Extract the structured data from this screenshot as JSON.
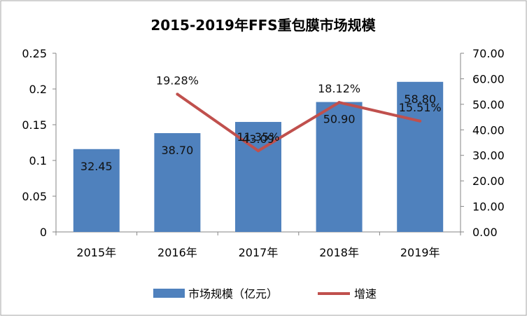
{
  "chart_data": {
    "type": "bar",
    "title": "2015-2019年FFS重包膜市场规模",
    "categories": [
      "2015年",
      "2016年",
      "2017年",
      "2018年",
      "2019年"
    ],
    "series": [
      {
        "name": "市场规模（亿元）",
        "kind": "bar",
        "axis": "right",
        "values": [
          32.45,
          38.7,
          43.09,
          50.9,
          58.8
        ],
        "labels": [
          "32.45",
          "38.70",
          "43.09",
          "50.90",
          "58.80"
        ],
        "color": "#4F81BD"
      },
      {
        "name": "增速",
        "kind": "line",
        "axis": "left",
        "values": [
          null,
          0.1928,
          0.1135,
          0.1812,
          0.1551
        ],
        "labels": [
          "",
          "19.28%",
          "11.35%",
          "18.12%",
          "15.51%"
        ],
        "color": "#C0504D"
      }
    ],
    "left_axis": {
      "ylim": [
        0,
        0.25
      ],
      "ticks": [
        0,
        0.05,
        0.1,
        0.15,
        0.2,
        0.25
      ],
      "tick_labels": [
        "0",
        "0.05",
        "0.1",
        "0.15",
        "0.2",
        "0.25"
      ]
    },
    "right_axis": {
      "ylim": [
        0,
        70
      ],
      "ticks": [
        0,
        10,
        20,
        30,
        40,
        50,
        60,
        70
      ],
      "tick_labels": [
        "0.00",
        "10.00",
        "20.00",
        "30.00",
        "40.00",
        "50.00",
        "60.00",
        "70.00"
      ]
    },
    "grid": false,
    "legend": "bottom"
  }
}
